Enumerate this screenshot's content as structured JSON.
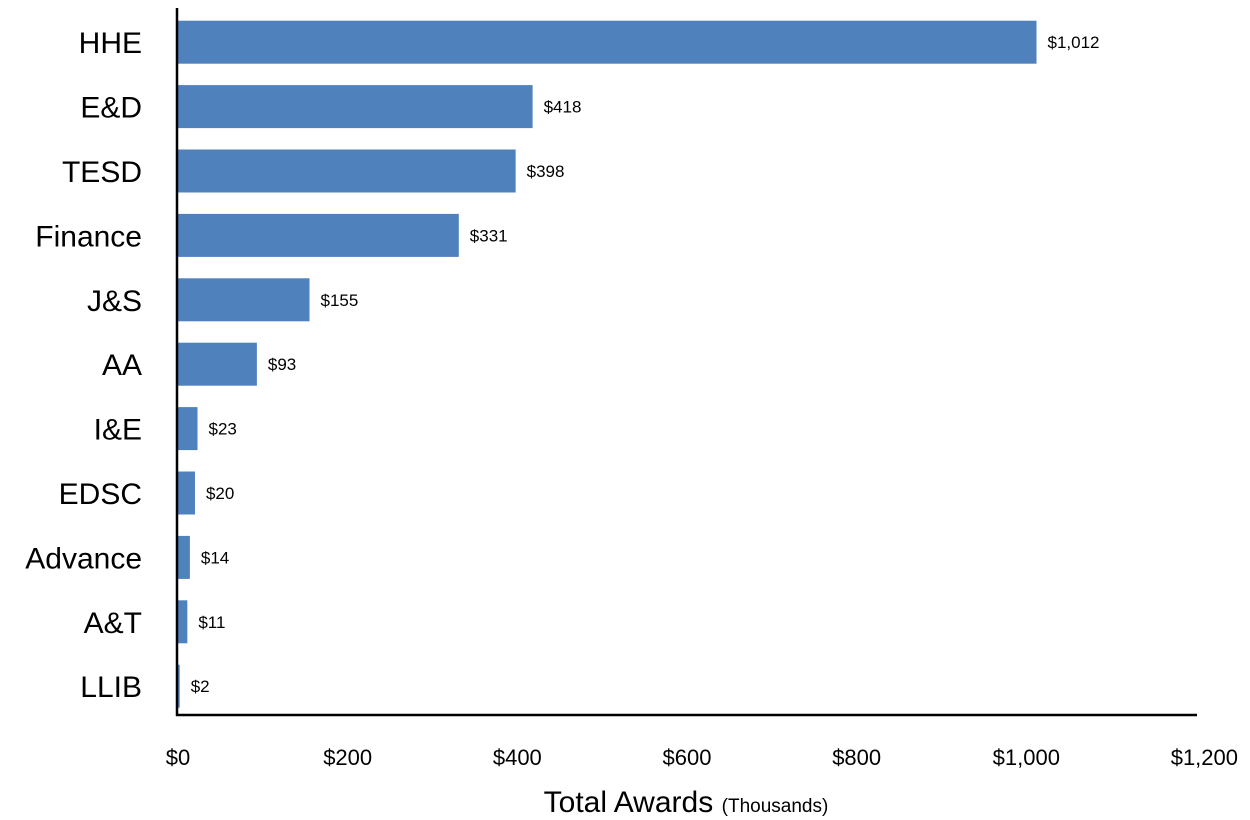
{
  "chart_data": {
    "type": "bar",
    "orientation": "horizontal",
    "categories": [
      "HHE",
      "E&D",
      "TESD",
      "Finance",
      "J&S",
      "AA",
      "I&E",
      "EDSC",
      "Advance",
      "A&T",
      "LLIB"
    ],
    "values": [
      1012,
      418,
      398,
      331,
      155,
      93,
      23,
      20,
      14,
      11,
      2
    ],
    "data_labels": [
      "$1,012",
      "$418",
      "$398",
      "$331",
      "$155",
      "$93",
      "$23",
      "$20",
      "$14",
      "$11",
      "$2"
    ],
    "xlim": [
      0,
      1200
    ],
    "x_ticks": [
      0,
      200,
      400,
      600,
      800,
      1000,
      1200
    ],
    "x_tick_labels": [
      "$0",
      "$200",
      "$400",
      "$600",
      "$800",
      "$1,000",
      "$1,200"
    ],
    "xlabel": "Total Awards",
    "xlabel_unit": "(Thousands)",
    "bar_color": "#4f81bd",
    "grid": false,
    "legend": "none"
  }
}
